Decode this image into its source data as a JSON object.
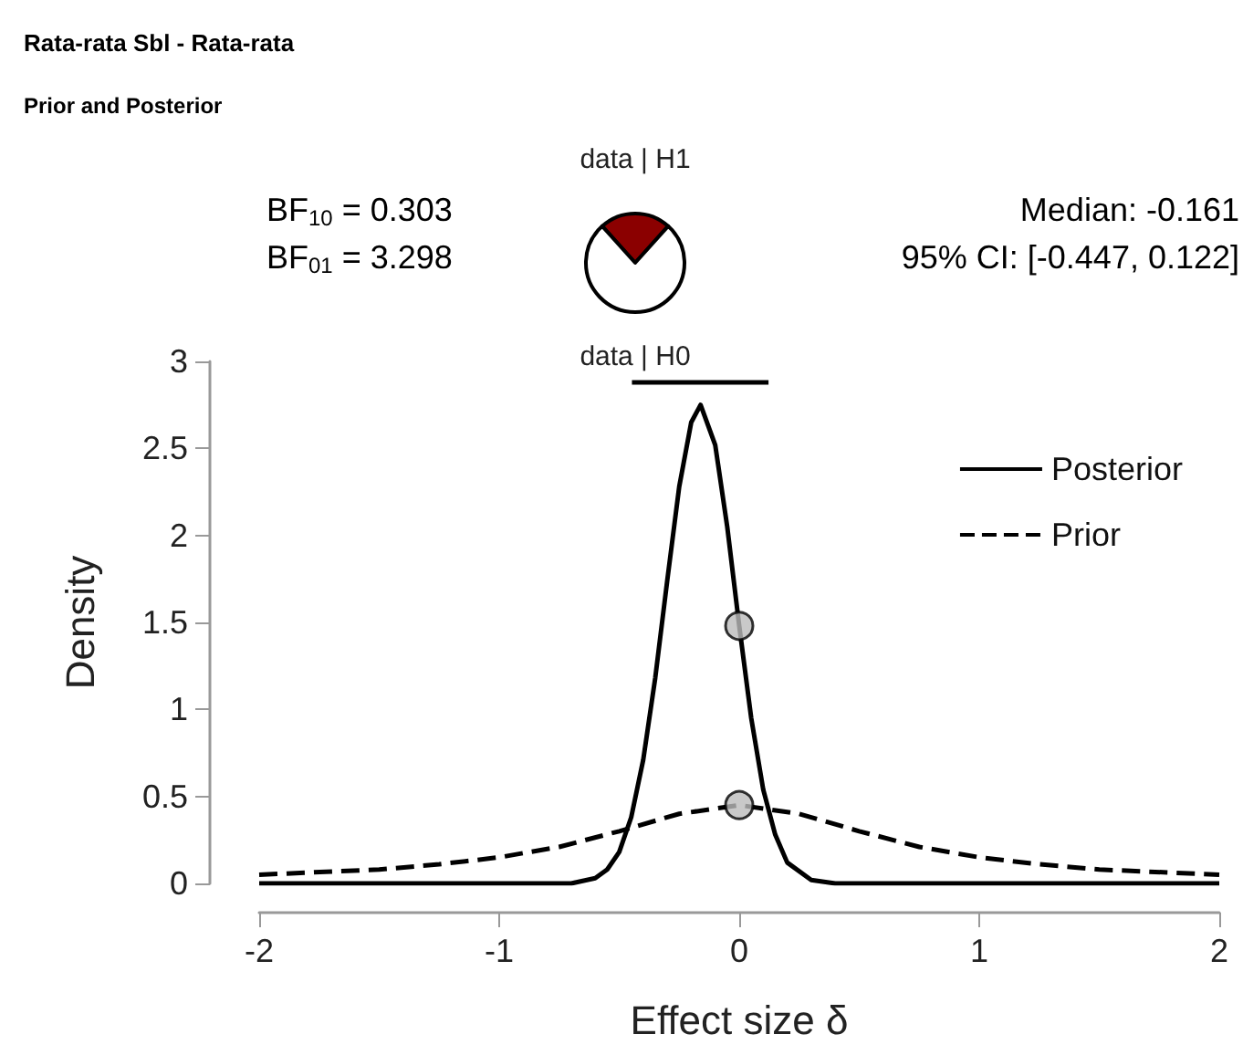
{
  "chart_data": [
    {
      "type": "line",
      "title": "Rata-rata Sbl - Rata-rata",
      "subtitle": "Prior and Posterior",
      "xlabel": "Effect size δ",
      "ylabel": "Density",
      "annotations": [
        "BF$_{10}$ = 0.303",
        "BF$_{01}$ = 3.298",
        "Median: -0.161",
        "95% CI: [-0.447, 0.122]"
      ],
      "xlim": [
        -2,
        2
      ],
      "xticks": [
        -2,
        -1,
        0,
        1,
        2
      ],
      "ylim": [
        0,
        3
      ],
      "yticks": [
        0,
        0.5,
        1,
        1.5,
        2,
        2.5,
        3
      ],
      "grid": false,
      "legend": "top right",
      "series": [
        {
          "name": "Posterior",
          "color": "#000000",
          "line_style": "solid",
          "marker": "none",
          "x": [
            -2,
            -1,
            -0.8,
            -0.7,
            -0.6,
            -0.55,
            -0.5,
            -0.45,
            -0.4,
            -0.35,
            -0.3,
            -0.25,
            -0.2,
            -0.161,
            -0.1,
            -0.05,
            0,
            0.05,
            0.1,
            0.15,
            0.2,
            0.3,
            0.4,
            0.6,
            1,
            2
          ],
          "values": [
            0,
            0,
            0,
            0,
            0.03,
            0.08,
            0.18,
            0.38,
            0.71,
            1.18,
            1.74,
            2.28,
            2.65,
            2.75,
            2.52,
            2.05,
            1.48,
            0.95,
            0.54,
            0.28,
            0.12,
            0.02,
            0,
            0,
            0,
            0
          ]
        },
        {
          "name": "Prior",
          "color": "#000000",
          "line_style": "dashed",
          "marker": "none",
          "x": [
            -2,
            -1.5,
            -1.25,
            -1,
            -0.75,
            -0.5,
            -0.25,
            0,
            0.25,
            0.5,
            0.75,
            1,
            1.25,
            1.5,
            2
          ],
          "values": [
            0.05,
            0.08,
            0.11,
            0.15,
            0.21,
            0.3,
            0.4,
            0.45,
            0.4,
            0.3,
            0.21,
            0.15,
            0.11,
            0.08,
            0.05
          ]
        },
        {
          "type": "scatter",
          "color": "#bbbbbb",
          "marker": "circle",
          "x": [
            0,
            0
          ],
          "values": [
            1.48,
            0.45
          ]
        },
        {
          "type": "line",
          "color": "#000000",
          "line_style": "solid",
          "marker": "none",
          "x": [
            -0.447,
            0.122
          ],
          "values": [
            2.88,
            2.88
          ]
        }
      ]
    },
    {
      "type": "pie",
      "categories": [
        "data | H1",
        "data | H0"
      ],
      "values": [
        23.3,
        76.7
      ],
      "colors": [
        "#8b0000",
        "#ffffff"
      ]
    }
  ]
}
